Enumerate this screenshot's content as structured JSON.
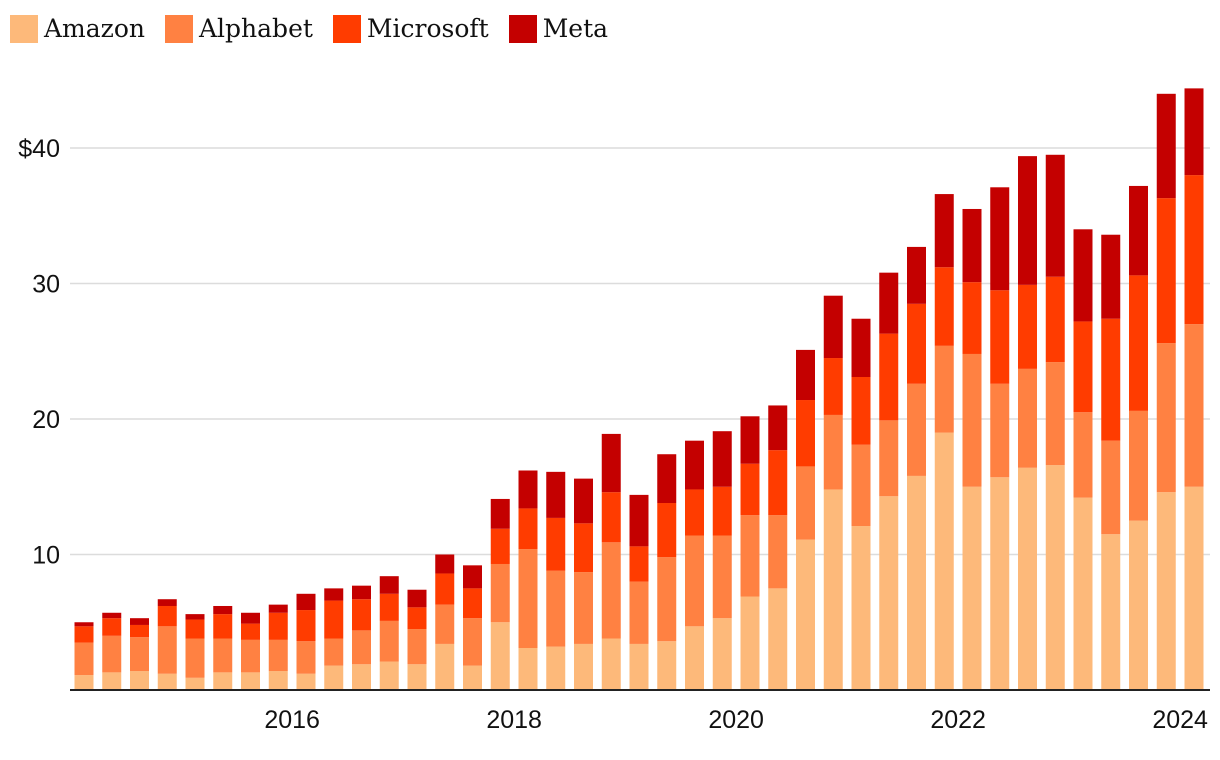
{
  "chart_data": {
    "type": "bar",
    "stacked": true,
    "title": "",
    "xlabel": "",
    "ylabel": "",
    "ylim": [
      0,
      45
    ],
    "y_ticks": [
      {
        "value": 10,
        "label": "10"
      },
      {
        "value": 20,
        "label": "20"
      },
      {
        "value": 30,
        "label": "30"
      },
      {
        "value": 40,
        "label": "$40"
      }
    ],
    "x_ticks": [
      {
        "index": 7.5,
        "label": "2016"
      },
      {
        "index": 15.5,
        "label": "2018"
      },
      {
        "index": 23.5,
        "label": "2020"
      },
      {
        "index": 31.5,
        "label": "2022"
      },
      {
        "index": 39.5,
        "label": "2024"
      }
    ],
    "categories": [
      "Q2 2014",
      "Q3 2014",
      "Q4 2014",
      "Q1 2015",
      "Q2 2015",
      "Q3 2015",
      "Q4 2015",
      "Q1 2016",
      "Q2 2016",
      "Q3 2016",
      "Q4 2016",
      "Q1 2017",
      "Q2 2017",
      "Q3 2017",
      "Q4 2017",
      "Q1 2018",
      "Q2 2018",
      "Q3 2018",
      "Q4 2018",
      "Q1 2019",
      "Q2 2019",
      "Q3 2019",
      "Q4 2019",
      "Q1 2020",
      "Q2 2020",
      "Q3 2020",
      "Q4 2020",
      "Q1 2021",
      "Q2 2021",
      "Q3 2021",
      "Q4 2021",
      "Q1 2022",
      "Q2 2022",
      "Q3 2022",
      "Q4 2022",
      "Q1 2023",
      "Q2 2023",
      "Q3 2023",
      "Q4 2023",
      "Q1 2024",
      "Q2 2024"
    ],
    "series": [
      {
        "name": "Amazon",
        "color": "#FDB97A",
        "values": [
          1.1,
          1.3,
          1.4,
          1.2,
          0.9,
          1.3,
          1.3,
          1.4,
          1.2,
          1.8,
          1.9,
          2.1,
          1.9,
          3.4,
          1.8,
          5.0,
          3.1,
          3.2,
          3.4,
          3.8,
          3.4,
          3.6,
          4.7,
          5.3,
          6.9,
          7.5,
          11.1,
          14.8,
          12.1,
          14.3,
          15.8,
          19.0,
          15.0,
          15.7,
          16.4,
          16.6,
          14.2,
          11.5,
          12.5,
          14.6,
          15.0
        ]
      },
      {
        "name": "Alphabet",
        "color": "#FF8142",
        "values": [
          2.4,
          2.7,
          2.5,
          3.5,
          2.9,
          2.5,
          2.4,
          2.3,
          2.4,
          2.0,
          2.5,
          3.0,
          2.6,
          2.9,
          3.5,
          4.3,
          7.3,
          5.6,
          5.3,
          7.1,
          4.6,
          6.2,
          6.7,
          6.1,
          6.0,
          5.4,
          5.4,
          5.5,
          6.0,
          5.6,
          6.8,
          6.4,
          9.8,
          6.9,
          7.3,
          7.6,
          6.3,
          6.9,
          8.1,
          11.0,
          12.0
        ]
      },
      {
        "name": "Microsoft",
        "color": "#FF3C00",
        "values": [
          1.2,
          1.3,
          0.9,
          1.5,
          1.4,
          1.8,
          1.2,
          2.0,
          2.3,
          2.8,
          2.3,
          2.0,
          1.6,
          2.3,
          2.2,
          2.6,
          3.0,
          3.9,
          3.6,
          3.7,
          2.6,
          4.0,
          3.4,
          3.6,
          3.8,
          4.8,
          4.9,
          4.2,
          5.0,
          6.4,
          5.9,
          5.8,
          5.3,
          6.9,
          6.2,
          6.3,
          6.7,
          9.0,
          10.0,
          10.7,
          11.0
        ]
      },
      {
        "name": "Meta",
        "color": "#C40000",
        "values": [
          0.3,
          0.4,
          0.5,
          0.5,
          0.4,
          0.6,
          0.8,
          0.6,
          1.2,
          0.9,
          1.0,
          1.3,
          1.3,
          1.4,
          1.7,
          2.2,
          2.8,
          3.4,
          3.3,
          4.3,
          3.8,
          3.6,
          3.6,
          4.1,
          3.5,
          3.3,
          3.7,
          4.6,
          4.3,
          4.5,
          4.2,
          5.4,
          5.4,
          7.6,
          9.5,
          9.0,
          6.8,
          6.2,
          6.6,
          7.7,
          6.4
        ]
      }
    ]
  }
}
